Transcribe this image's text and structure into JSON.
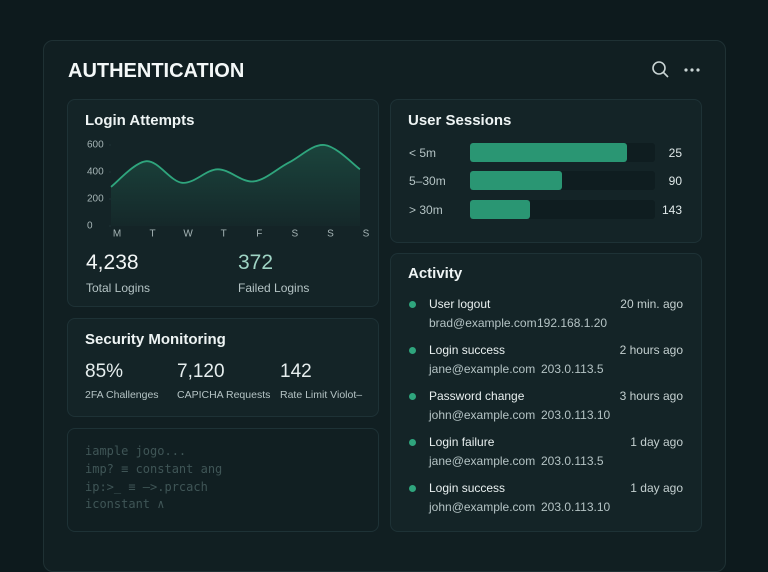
{
  "header": {
    "title": "AUTHENTICATION"
  },
  "login_attempts": {
    "title": "Login Attempts",
    "chart": {
      "type": "line",
      "categories": [
        "M",
        "T",
        "W",
        "T",
        "F",
        "S",
        "S",
        "S"
      ],
      "values": [
        290,
        480,
        320,
        420,
        330,
        470,
        600,
        420
      ],
      "color": "#2fa57d",
      "ylim": [
        0,
        700
      ],
      "yticks": [
        0,
        200,
        400,
        600
      ]
    },
    "stats": [
      {
        "value": "4,238",
        "label": "Total Logins"
      },
      {
        "value": "372",
        "label": "Failed Logins"
      }
    ]
  },
  "user_sessions": {
    "title": "User Sessions",
    "rows": [
      {
        "label": "< 5m",
        "value": "25"
      },
      {
        "label": "5–30m",
        "value": "90"
      },
      {
        "label": "> 30m",
        "value": "143"
      }
    ]
  },
  "security_monitoring": {
    "title": "Security Monitoring",
    "stats": [
      {
        "value": "85%",
        "label": "2FA Challenges"
      },
      {
        "value": "7,120",
        "label": "CAPICHA Requests"
      },
      {
        "value": "142",
        "label": "Rate Limit Violot–"
      }
    ]
  },
  "code": {
    "lines": [
      "iample jogo...",
      "imp? ≡ constant ang",
      "ip:>_ ≡ –>.prcach",
      "iconstant ∧"
    ]
  },
  "activity": {
    "title": "Activity",
    "items": [
      {
        "event": "User logout",
        "time": "20 min. ago",
        "email": "brad@example.com",
        "ip": "192.168.1.20"
      },
      {
        "event": "Login success",
        "time": "2 hours ago",
        "email": "jane@example.com",
        "ip": "203.0.113.5"
      },
      {
        "event": "Password change",
        "time": "3 hours ago",
        "email": "john@example.com",
        "ip": "203.0.113.10"
      },
      {
        "event": "Login failure",
        "time": "1 day ago",
        "email": "jane@example.com",
        "ip": "203.0.113.5"
      },
      {
        "event": "Login success",
        "time": "1 day ago",
        "email": "john@example.com",
        "ip": "203.0.113.10"
      }
    ]
  }
}
